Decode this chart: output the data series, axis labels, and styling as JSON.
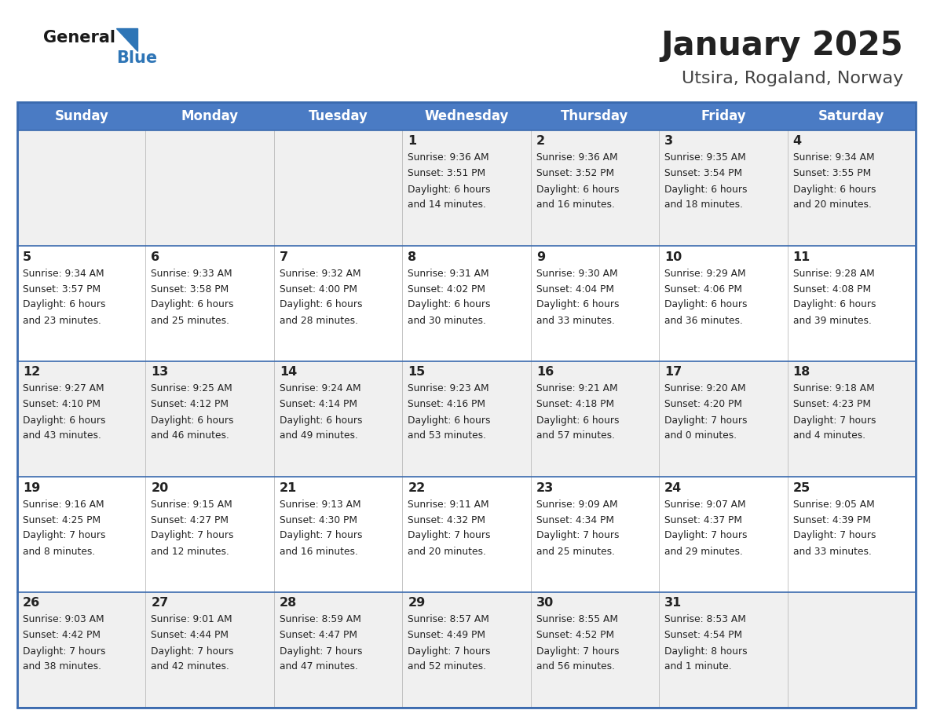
{
  "title": "January 2025",
  "subtitle": "Utsira, Rogaland, Norway",
  "days_of_week": [
    "Sunday",
    "Monday",
    "Tuesday",
    "Wednesday",
    "Thursday",
    "Friday",
    "Saturday"
  ],
  "header_bg": "#4A7BC4",
  "header_text": "#FFFFFF",
  "cell_bg_light": "#F0F0F0",
  "cell_bg_white": "#FFFFFF",
  "border_color": "#3A6AAE",
  "text_color": "#222222",
  "logo_general_color": "#1a1a1a",
  "logo_blue_color": "#2E75B6",
  "title_color": "#222222",
  "subtitle_color": "#444444",
  "calendar": [
    [
      {
        "day": null,
        "sunrise": null,
        "sunset": null,
        "daylight": null
      },
      {
        "day": null,
        "sunrise": null,
        "sunset": null,
        "daylight": null
      },
      {
        "day": null,
        "sunrise": null,
        "sunset": null,
        "daylight": null
      },
      {
        "day": 1,
        "sunrise": "9:36 AM",
        "sunset": "3:51 PM",
        "daylight": "6 hours\nand 14 minutes."
      },
      {
        "day": 2,
        "sunrise": "9:36 AM",
        "sunset": "3:52 PM",
        "daylight": "6 hours\nand 16 minutes."
      },
      {
        "day": 3,
        "sunrise": "9:35 AM",
        "sunset": "3:54 PM",
        "daylight": "6 hours\nand 18 minutes."
      },
      {
        "day": 4,
        "sunrise": "9:34 AM",
        "sunset": "3:55 PM",
        "daylight": "6 hours\nand 20 minutes."
      }
    ],
    [
      {
        "day": 5,
        "sunrise": "9:34 AM",
        "sunset": "3:57 PM",
        "daylight": "6 hours\nand 23 minutes."
      },
      {
        "day": 6,
        "sunrise": "9:33 AM",
        "sunset": "3:58 PM",
        "daylight": "6 hours\nand 25 minutes."
      },
      {
        "day": 7,
        "sunrise": "9:32 AM",
        "sunset": "4:00 PM",
        "daylight": "6 hours\nand 28 minutes."
      },
      {
        "day": 8,
        "sunrise": "9:31 AM",
        "sunset": "4:02 PM",
        "daylight": "6 hours\nand 30 minutes."
      },
      {
        "day": 9,
        "sunrise": "9:30 AM",
        "sunset": "4:04 PM",
        "daylight": "6 hours\nand 33 minutes."
      },
      {
        "day": 10,
        "sunrise": "9:29 AM",
        "sunset": "4:06 PM",
        "daylight": "6 hours\nand 36 minutes."
      },
      {
        "day": 11,
        "sunrise": "9:28 AM",
        "sunset": "4:08 PM",
        "daylight": "6 hours\nand 39 minutes."
      }
    ],
    [
      {
        "day": 12,
        "sunrise": "9:27 AM",
        "sunset": "4:10 PM",
        "daylight": "6 hours\nand 43 minutes."
      },
      {
        "day": 13,
        "sunrise": "9:25 AM",
        "sunset": "4:12 PM",
        "daylight": "6 hours\nand 46 minutes."
      },
      {
        "day": 14,
        "sunrise": "9:24 AM",
        "sunset": "4:14 PM",
        "daylight": "6 hours\nand 49 minutes."
      },
      {
        "day": 15,
        "sunrise": "9:23 AM",
        "sunset": "4:16 PM",
        "daylight": "6 hours\nand 53 minutes."
      },
      {
        "day": 16,
        "sunrise": "9:21 AM",
        "sunset": "4:18 PM",
        "daylight": "6 hours\nand 57 minutes."
      },
      {
        "day": 17,
        "sunrise": "9:20 AM",
        "sunset": "4:20 PM",
        "daylight": "7 hours\nand 0 minutes."
      },
      {
        "day": 18,
        "sunrise": "9:18 AM",
        "sunset": "4:23 PM",
        "daylight": "7 hours\nand 4 minutes."
      }
    ],
    [
      {
        "day": 19,
        "sunrise": "9:16 AM",
        "sunset": "4:25 PM",
        "daylight": "7 hours\nand 8 minutes."
      },
      {
        "day": 20,
        "sunrise": "9:15 AM",
        "sunset": "4:27 PM",
        "daylight": "7 hours\nand 12 minutes."
      },
      {
        "day": 21,
        "sunrise": "9:13 AM",
        "sunset": "4:30 PM",
        "daylight": "7 hours\nand 16 minutes."
      },
      {
        "day": 22,
        "sunrise": "9:11 AM",
        "sunset": "4:32 PM",
        "daylight": "7 hours\nand 20 minutes."
      },
      {
        "day": 23,
        "sunrise": "9:09 AM",
        "sunset": "4:34 PM",
        "daylight": "7 hours\nand 25 minutes."
      },
      {
        "day": 24,
        "sunrise": "9:07 AM",
        "sunset": "4:37 PM",
        "daylight": "7 hours\nand 29 minutes."
      },
      {
        "day": 25,
        "sunrise": "9:05 AM",
        "sunset": "4:39 PM",
        "daylight": "7 hours\nand 33 minutes."
      }
    ],
    [
      {
        "day": 26,
        "sunrise": "9:03 AM",
        "sunset": "4:42 PM",
        "daylight": "7 hours\nand 38 minutes."
      },
      {
        "day": 27,
        "sunrise": "9:01 AM",
        "sunset": "4:44 PM",
        "daylight": "7 hours\nand 42 minutes."
      },
      {
        "day": 28,
        "sunrise": "8:59 AM",
        "sunset": "4:47 PM",
        "daylight": "7 hours\nand 47 minutes."
      },
      {
        "day": 29,
        "sunrise": "8:57 AM",
        "sunset": "4:49 PM",
        "daylight": "7 hours\nand 52 minutes."
      },
      {
        "day": 30,
        "sunrise": "8:55 AM",
        "sunset": "4:52 PM",
        "daylight": "7 hours\nand 56 minutes."
      },
      {
        "day": 31,
        "sunrise": "8:53 AM",
        "sunset": "4:54 PM",
        "daylight": "8 hours\nand 1 minute."
      },
      {
        "day": null,
        "sunrise": null,
        "sunset": null,
        "daylight": null
      }
    ]
  ]
}
